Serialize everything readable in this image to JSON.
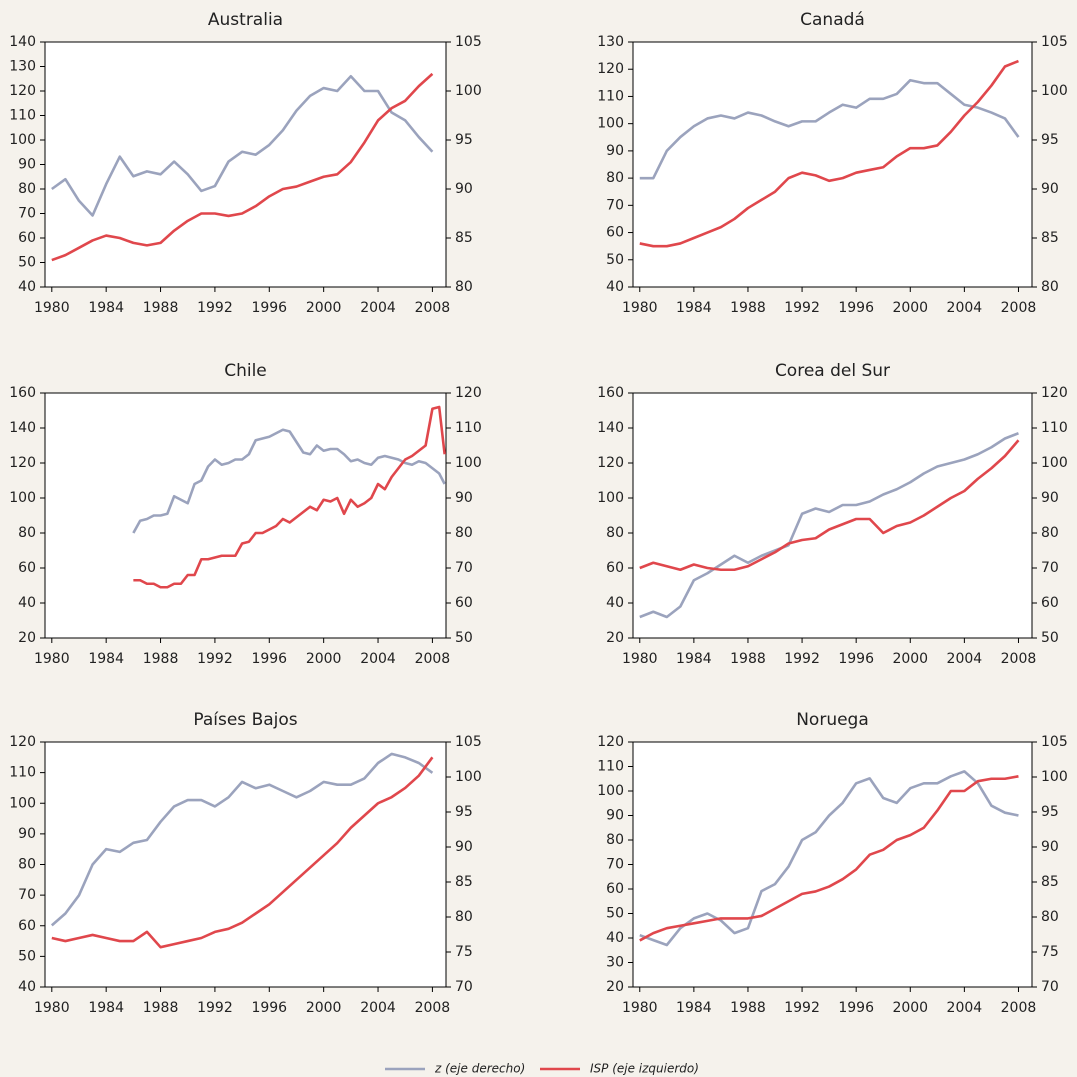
{
  "chart_data": [
    {
      "type": "line",
      "title": "Australia",
      "x": [
        1980,
        1981,
        1982,
        1983,
        1984,
        1985,
        1986,
        1987,
        1988,
        1989,
        1990,
        1991,
        1992,
        1993,
        1994,
        1995,
        1996,
        1997,
        1998,
        1999,
        2000,
        2001,
        2002,
        2003,
        2004,
        2005,
        2006,
        2007,
        2008
      ],
      "xlim": [
        1979.5,
        2009
      ],
      "xticks": [
        1980,
        1984,
        1988,
        1992,
        1996,
        2000,
        2004,
        2008
      ],
      "ylim": [
        40,
        140
      ],
      "yticks": [
        40,
        50,
        60,
        70,
        80,
        90,
        100,
        110,
        120,
        130,
        140
      ],
      "y2lim": [
        80,
        105
      ],
      "y2ticks": [
        80,
        85,
        90,
        95,
        100,
        105
      ],
      "series": [
        {
          "name": "z (eje derecho)",
          "color": "#9ba3bd",
          "axis": "y2",
          "values": [
            90,
            91,
            88.8,
            87.3,
            90.5,
            93.3,
            91.3,
            91.8,
            91.5,
            92.8,
            91.5,
            89.8,
            90.3,
            92.8,
            93.8,
            93.5,
            94.5,
            96,
            98,
            99.5,
            100.3,
            100,
            101.5,
            100,
            100,
            97.8,
            97,
            95.3,
            93.8
          ]
        },
        {
          "name": "ISP (eje izquierdo)",
          "color": "#e0474c",
          "values": [
            51,
            53,
            56,
            59,
            61,
            60,
            58,
            57,
            58,
            63,
            67,
            70,
            70,
            69,
            70,
            73,
            77,
            80,
            81,
            83,
            85,
            86,
            91,
            99,
            108,
            113,
            116,
            122,
            127
          ]
        }
      ]
    },
    {
      "type": "line",
      "title": "Canadá",
      "x": [
        1980,
        1981,
        1982,
        1983,
        1984,
        1985,
        1986,
        1987,
        1988,
        1989,
        1990,
        1991,
        1992,
        1993,
        1994,
        1995,
        1996,
        1997,
        1998,
        1999,
        2000,
        2001,
        2002,
        2003,
        2004,
        2005,
        2006,
        2007,
        2008
      ],
      "xlim": [
        1979.5,
        2009
      ],
      "xticks": [
        1980,
        1984,
        1988,
        1992,
        1996,
        2000,
        2004,
        2008
      ],
      "ylim": [
        40,
        130
      ],
      "yticks": [
        40,
        50,
        60,
        70,
        80,
        90,
        100,
        110,
        120,
        130
      ],
      "y2lim": [
        80,
        105
      ],
      "y2ticks": [
        80,
        85,
        90,
        95,
        100,
        105
      ],
      "series": [
        {
          "color": "#9ba3bd",
          "axis": "y2",
          "values": [
            91.1,
            91.1,
            93.9,
            95.3,
            96.4,
            97.2,
            97.5,
            97.2,
            97.8,
            97.5,
            96.9,
            96.4,
            96.9,
            96.9,
            97.8,
            98.6,
            98.3,
            99.2,
            99.2,
            99.7,
            101.1,
            100.8,
            100.8,
            99.7,
            98.6,
            98.3,
            97.8,
            97.2,
            95.3
          ]
        },
        {
          "color": "#e0474c",
          "values": [
            56,
            55,
            55,
            56,
            58,
            60,
            62,
            65,
            69,
            72,
            75,
            80,
            82,
            81,
            79,
            80,
            82,
            83,
            84,
            88,
            91,
            91,
            92,
            97,
            103,
            108,
            114,
            121,
            123
          ]
        }
      ]
    },
    {
      "type": "line",
      "title": "Chile",
      "x": [
        1986,
        1986.5,
        1987,
        1987.5,
        1988,
        1988.5,
        1989,
        1989.5,
        1990,
        1990.5,
        1991,
        1991.5,
        1992,
        1992.5,
        1993,
        1993.5,
        1994,
        1994.5,
        1995,
        1995.5,
        1996,
        1996.5,
        1997,
        1997.5,
        1998,
        1998.5,
        1999,
        1999.5,
        2000,
        2000.5,
        2001,
        2001.5,
        2002,
        2002.5,
        2003,
        2003.5,
        2004,
        2004.5,
        2005,
        2005.5,
        2006,
        2006.5,
        2007,
        2007.5,
        2008,
        2008.5,
        2008.9
      ],
      "xlim": [
        1979.5,
        2009
      ],
      "xticks": [
        1980,
        1984,
        1988,
        1992,
        1996,
        2000,
        2004,
        2008
      ],
      "ylim": [
        20,
        160
      ],
      "yticks": [
        20,
        40,
        60,
        80,
        100,
        120,
        140,
        160
      ],
      "y2lim": [
        50,
        120
      ],
      "y2ticks": [
        50,
        60,
        70,
        80,
        90,
        100,
        110,
        120
      ],
      "series": [
        {
          "color": "#9ba3bd",
          "axis": "y2",
          "values": [
            80,
            83.5,
            84,
            85,
            85,
            85.5,
            90.5,
            89.5,
            88.5,
            94,
            95,
            99,
            101,
            99.5,
            100,
            101,
            101,
            102.5,
            106.5,
            107,
            107.5,
            108.5,
            109.5,
            109,
            106,
            103,
            102.5,
            105,
            103.5,
            104,
            104,
            102.5,
            100.5,
            101,
            100,
            99.5,
            101.5,
            102,
            101.5,
            101,
            100,
            99.5,
            100.5,
            100,
            98.5,
            97,
            94
          ]
        },
        {
          "color": "#e0474c",
          "values": [
            53,
            53,
            51,
            51,
            49,
            49,
            51,
            51,
            56,
            56,
            65,
            65,
            66,
            67,
            67,
            67,
            74,
            75,
            80,
            80,
            82,
            84,
            88,
            86,
            89,
            92,
            95,
            93,
            99,
            98,
            100,
            91,
            99,
            95,
            97,
            100,
            108,
            105,
            112,
            117,
            122,
            124,
            127,
            130,
            151,
            152,
            125
          ]
        }
      ]
    },
    {
      "type": "line",
      "title": "Corea del Sur",
      "x": [
        1980,
        1981,
        1982,
        1983,
        1984,
        1985,
        1986,
        1987,
        1988,
        1989,
        1990,
        1991,
        1992,
        1993,
        1994,
        1995,
        1996,
        1997,
        1998,
        1999,
        2000,
        2001,
        2002,
        2003,
        2004,
        2005,
        2006,
        2007,
        2008
      ],
      "xlim": [
        1979.5,
        2009
      ],
      "xticks": [
        1980,
        1984,
        1988,
        1992,
        1996,
        2000,
        2004,
        2008
      ],
      "ylim": [
        20,
        160
      ],
      "yticks": [
        20,
        40,
        60,
        80,
        100,
        120,
        140,
        160
      ],
      "y2lim": [
        50,
        120
      ],
      "y2ticks": [
        50,
        60,
        70,
        80,
        90,
        100,
        110,
        120
      ],
      "series": [
        {
          "color": "#9ba3bd",
          "axis": "y2",
          "values": [
            56,
            57.5,
            56,
            59,
            66.5,
            68.5,
            71,
            73.5,
            71.5,
            73.5,
            75,
            76.5,
            85.5,
            87,
            86,
            88,
            88,
            89,
            91,
            92.5,
            94.5,
            97,
            99,
            100,
            101,
            102.5,
            104.5,
            107,
            108.5
          ]
        },
        {
          "color": "#e0474c",
          "values": [
            60,
            63,
            61,
            59,
            62,
            60,
            59,
            59,
            61,
            65,
            69,
            74,
            76,
            77,
            82,
            85,
            88,
            88,
            80,
            84,
            86,
            90,
            95,
            100,
            104,
            111,
            117,
            124,
            133
          ]
        }
      ]
    },
    {
      "type": "line",
      "title": "Países Bajos",
      "x": [
        1980,
        1981,
        1982,
        1983,
        1984,
        1985,
        1986,
        1987,
        1988,
        1989,
        1990,
        1991,
        1992,
        1993,
        1994,
        1995,
        1996,
        1997,
        1998,
        1999,
        2000,
        2001,
        2002,
        2003,
        2004,
        2005,
        2006,
        2007,
        2008
      ],
      "xlim": [
        1979.5,
        2009
      ],
      "xticks": [
        1980,
        1984,
        1988,
        1992,
        1996,
        2000,
        2004,
        2008
      ],
      "ylim": [
        40,
        120
      ],
      "yticks": [
        40,
        50,
        60,
        70,
        80,
        90,
        100,
        110,
        120
      ],
      "y2lim": [
        70,
        105
      ],
      "y2ticks": [
        70,
        75,
        80,
        85,
        90,
        95,
        100,
        105
      ],
      "series": [
        {
          "color": "#9ba3bd",
          "axis": "y2",
          "values": [
            78.8,
            80.5,
            83.1,
            87.5,
            89.7,
            89.3,
            90.6,
            91,
            93.6,
            95.8,
            96.7,
            96.7,
            95.8,
            97.1,
            99.3,
            98.4,
            98.9,
            98,
            97.1,
            98,
            99.3,
            98.9,
            98.9,
            99.8,
            102,
            103.3,
            102.8,
            102,
            100.6
          ]
        },
        {
          "color": "#e0474c",
          "values": [
            56,
            55,
            56,
            57,
            56,
            55,
            55,
            58,
            53,
            54,
            55,
            56,
            58,
            59,
            61,
            64,
            67,
            71,
            75,
            79,
            83,
            87,
            92,
            96,
            100,
            102,
            105,
            109,
            115
          ]
        }
      ]
    },
    {
      "type": "line",
      "title": "Noruega",
      "x": [
        1980,
        1981,
        1982,
        1983,
        1984,
        1985,
        1986,
        1987,
        1988,
        1989,
        1990,
        1991,
        1992,
        1993,
        1994,
        1995,
        1996,
        1997,
        1998,
        1999,
        2000,
        2001,
        2002,
        2003,
        2004,
        2005,
        2006,
        2007,
        2008
      ],
      "xlim": [
        1979.5,
        2009
      ],
      "xticks": [
        1980,
        1984,
        1988,
        1992,
        1996,
        2000,
        2004,
        2008
      ],
      "ylim": [
        20,
        120
      ],
      "yticks": [
        20,
        30,
        40,
        50,
        60,
        70,
        80,
        90,
        100,
        110,
        120
      ],
      "y2lim": [
        70,
        105
      ],
      "y2ticks": [
        70,
        75,
        80,
        85,
        90,
        95,
        100,
        105
      ],
      "series": [
        {
          "color": "#9ba3bd",
          "axis": "y2",
          "values": [
            77.4,
            76.7,
            76,
            78.4,
            79.8,
            80.5,
            79.5,
            77.7,
            78.4,
            83.7,
            84.7,
            87.2,
            91,
            92.1,
            94.5,
            96.3,
            99.1,
            99.8,
            97,
            96.3,
            98.4,
            99.1,
            99.1,
            100.1,
            100.8,
            99.1,
            95.9,
            94.9,
            94.5
          ]
        },
        {
          "color": "#e0474c",
          "values": [
            39,
            42,
            44,
            45,
            46,
            47,
            48,
            48,
            48,
            49,
            52,
            55,
            58,
            59,
            61,
            64,
            68,
            74,
            76,
            80,
            82,
            85,
            92,
            100,
            100,
            104,
            105,
            105,
            106
          ]
        }
      ]
    }
  ]
}
